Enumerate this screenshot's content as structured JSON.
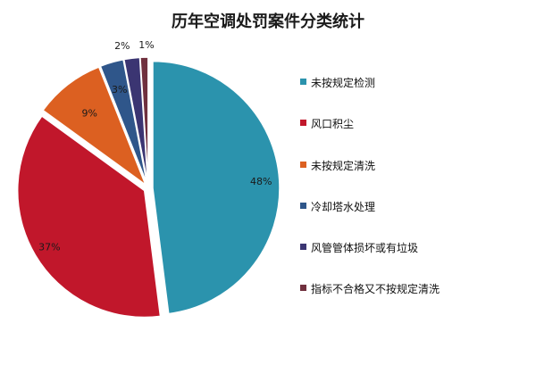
{
  "chart_data": {
    "type": "pie",
    "title": "历年空调处罚案件分类统计",
    "categories": [
      "未按规定检测",
      "风口积尘",
      "未按规定清洗",
      "冷却塔水处理",
      "风管管体损坏或有垃圾",
      "指标不合格又不按规定清洗"
    ],
    "values": [
      48,
      37,
      9,
      3,
      2,
      1
    ],
    "labels": [
      "48%",
      "37%",
      "9%",
      "3%",
      "2%",
      "1%"
    ],
    "colors": [
      "#2b93ad",
      "#c1172b",
      "#dc6021",
      "#2f568a",
      "#3b3572",
      "#70303e"
    ],
    "legend_position": "right"
  }
}
